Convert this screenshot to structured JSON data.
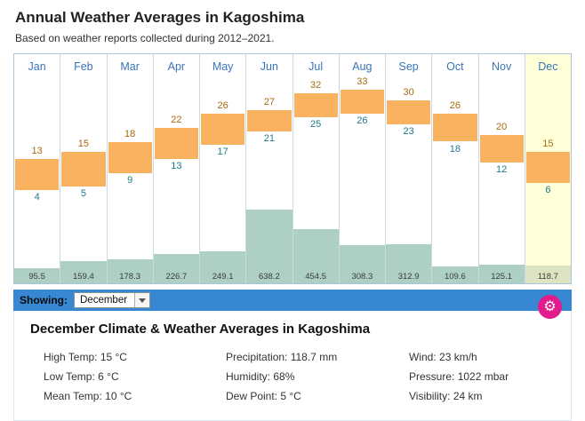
{
  "title": "Annual Weather Averages in Kagoshima",
  "subtitle": "Based on weather reports collected during 2012–2021.",
  "chart_data": {
    "type": "bar",
    "title": "Annual Weather Averages in Kagoshima",
    "categories": [
      "Jan",
      "Feb",
      "Mar",
      "Apr",
      "May",
      "Jun",
      "Jul",
      "Aug",
      "Sep",
      "Oct",
      "Nov",
      "Dec"
    ],
    "series": [
      {
        "name": "High Temp (°C)",
        "values": [
          13,
          15,
          18,
          22,
          26,
          27,
          32,
          33,
          30,
          26,
          20,
          15
        ]
      },
      {
        "name": "Low Temp (°C)",
        "values": [
          4,
          5,
          9,
          13,
          17,
          21,
          25,
          26,
          23,
          18,
          12,
          6
        ]
      },
      {
        "name": "Precipitation (mm)",
        "values": [
          95.5,
          159.4,
          178.3,
          226.7,
          249.1,
          638.2,
          454.5,
          308.3,
          312.9,
          109.6,
          125.1,
          118.7
        ]
      }
    ],
    "highlighted_month": "Dec",
    "temp_axis_range": [
      0,
      36
    ],
    "precip_axis_max": 700,
    "grid": false,
    "legend": "none",
    "colors": {
      "temp_bar": "#f9b360",
      "precip_bar": "#aed0c4",
      "high_label": "#a8690e",
      "low_label": "#1d7a8c",
      "month_label": "#3a74b8",
      "highlight_bg": "#ffffd8",
      "showing_bar_bg": "#3787d2",
      "gear_button_bg": "#e31c8d"
    }
  },
  "showing_bar": {
    "label": "Showing:",
    "selected": "December"
  },
  "icons": {
    "gear_glyph": "⚙"
  },
  "details": {
    "heading": "December Climate & Weather Averages in Kagoshima",
    "col1": [
      {
        "label": "High Temp:",
        "value": "15 °C"
      },
      {
        "label": "Low Temp:",
        "value": "6 °C"
      },
      {
        "label": "Mean Temp:",
        "value": "10 °C"
      }
    ],
    "col2": [
      {
        "label": "Precipitation:",
        "value": "118.7 mm"
      },
      {
        "label": "Humidity:",
        "value": "68%"
      },
      {
        "label": "Dew Point:",
        "value": "5 °C"
      }
    ],
    "col3": [
      {
        "label": "Wind:",
        "value": "23 km/h"
      },
      {
        "label": "Pressure:",
        "value": "1022 mbar"
      },
      {
        "label": "Visibility:",
        "value": "24 km"
      }
    ]
  }
}
